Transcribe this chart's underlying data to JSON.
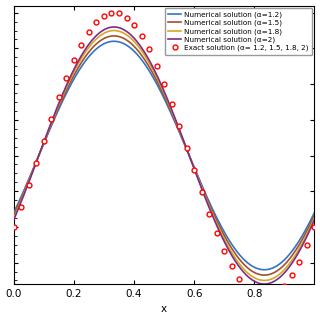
{
  "xlabel": "x",
  "xlim": [
    0,
    1.0
  ],
  "ylim": [
    -0.9,
    1.05
  ],
  "xticks": [
    0,
    0.2,
    0.4,
    0.6,
    0.8
  ],
  "line_colors": [
    "#3373C4",
    "#A0522D",
    "#DAA520",
    "#7B2D8B"
  ],
  "alphas": [
    1.2,
    1.5,
    1.8,
    2.0
  ],
  "exact_color": "#FF0000",
  "n_exact": 41,
  "legend_fontsize": 5.2,
  "axis_fontsize": 7.5,
  "line_width": 1.2
}
